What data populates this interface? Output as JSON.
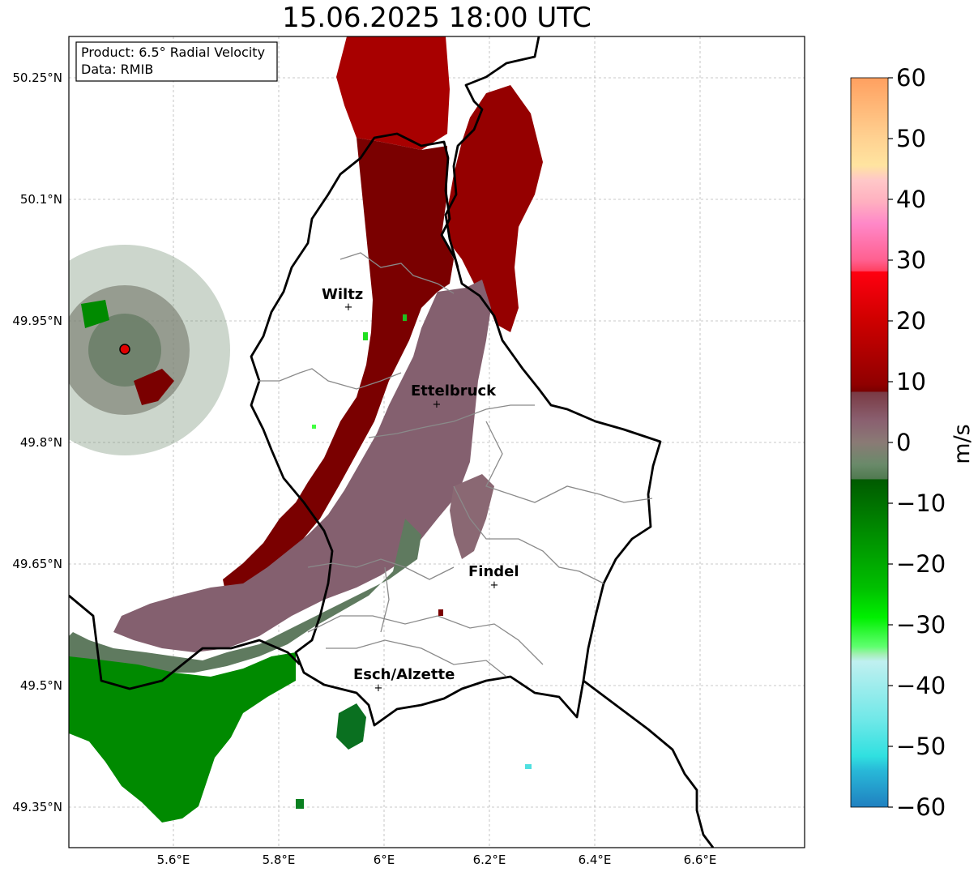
{
  "title": "15.06.2025 18:00 UTC",
  "info_box": {
    "product": "Product: 6.5° Radial Velocity",
    "data": "Data: RMIB"
  },
  "map": {
    "lon_ticks": [
      "5.6°E",
      "5.8°E",
      "6°E",
      "6.2°E",
      "6.4°E",
      "6.6°E"
    ],
    "lat_ticks": [
      "50.25°N",
      "50.1°N",
      "49.95°N",
      "49.8°N",
      "49.65°N",
      "49.5°N",
      "49.35°N"
    ],
    "cities": [
      {
        "name": "Wiltz"
      },
      {
        "name": "Ettelbruck"
      },
      {
        "name": "Findel"
      },
      {
        "name": "Esch/Alzette"
      }
    ],
    "radar_site_color": "#e00000"
  },
  "colorbar": {
    "label": "m/s",
    "ticks": [
      "60",
      "50",
      "40",
      "30",
      "20",
      "10",
      "0",
      "−10",
      "−20",
      "−30",
      "−40",
      "−50",
      "−60"
    ],
    "min": -60,
    "max": 60,
    "colors": {
      "pos_high": "#ffa060",
      "pink": "#ff80c8",
      "red": "#ff0010",
      "dark_red": "#7a0000",
      "mauve": "#8a6070",
      "grey_green": "#5a7a5a",
      "green": "#00b000",
      "light_green": "#60ff70",
      "cyan": "#30e0e0",
      "blue": "#2080c0"
    }
  }
}
